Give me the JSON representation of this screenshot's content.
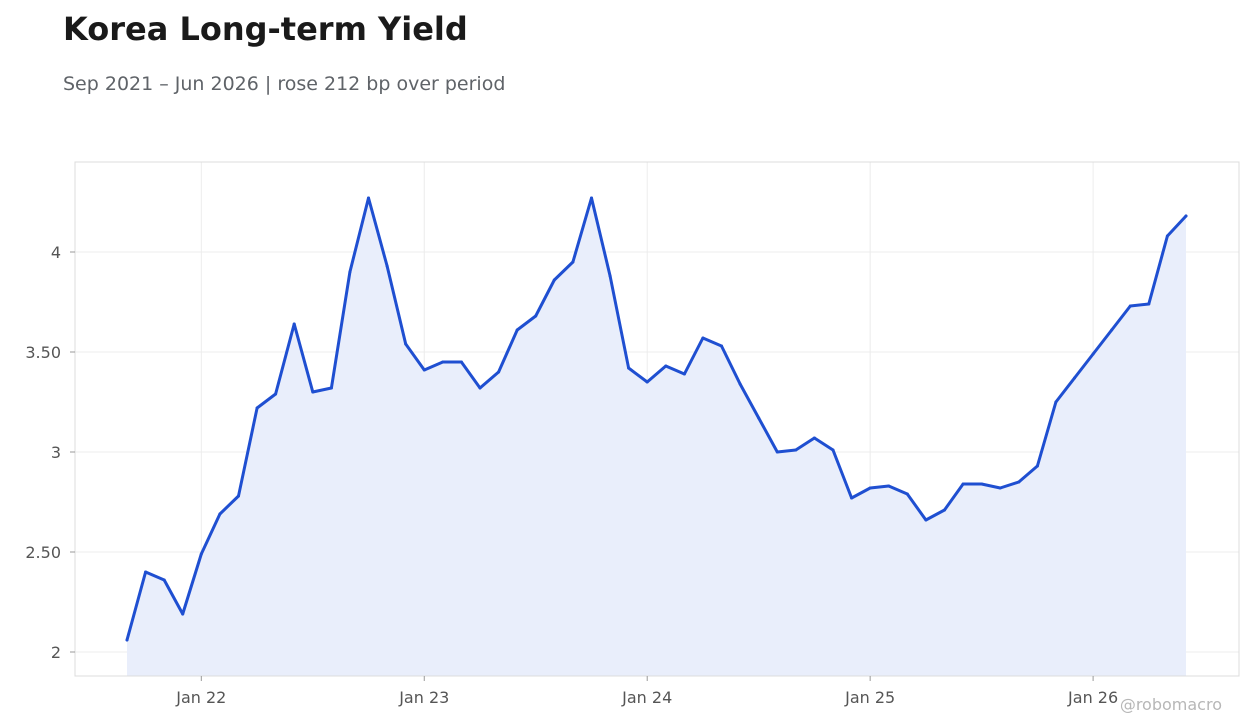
{
  "chart_data": {
    "type": "area",
    "title": "Korea Long-term Yield",
    "subtitle": "Sep 2021 – Jun 2026 | rose 212 bp over period",
    "xlabel": "",
    "ylabel": "",
    "x_start": "2021-09",
    "x_end": "2026-06",
    "xlim": [
      "2021-06",
      "2026-09"
    ],
    "ylim": [
      1.88,
      4.45
    ],
    "x_ticks": [
      {
        "date": "2022-01",
        "label": "Jan 22"
      },
      {
        "date": "2023-01",
        "label": "Jan 23"
      },
      {
        "date": "2024-01",
        "label": "Jan 24"
      },
      {
        "date": "2025-01",
        "label": "Jan 25"
      },
      {
        "date": "2026-01",
        "label": "Jan 26"
      }
    ],
    "y_ticks": [
      {
        "value": 2,
        "label": "2"
      },
      {
        "value": 2.5,
        "label": "2.50"
      },
      {
        "value": 3,
        "label": "3"
      },
      {
        "value": 3.5,
        "label": "3.50"
      },
      {
        "value": 4,
        "label": "4"
      }
    ],
    "grid": true,
    "line_color": "#1f4fd1",
    "fill_color": "#e9eefb",
    "series": [
      {
        "x": [
          "2021-09",
          "2021-10",
          "2021-11",
          "2021-12",
          "2022-01",
          "2022-02",
          "2022-03",
          "2022-04",
          "2022-05",
          "2022-06",
          "2022-07",
          "2022-08",
          "2022-09",
          "2022-10",
          "2022-11",
          "2022-12",
          "2023-01",
          "2023-02",
          "2023-03",
          "2023-04",
          "2023-05",
          "2023-06",
          "2023-07",
          "2023-08",
          "2023-09",
          "2023-10",
          "2023-11",
          "2023-12",
          "2024-01",
          "2024-02",
          "2024-03",
          "2024-04",
          "2024-05",
          "2024-06",
          "2024-07",
          "2024-08",
          "2024-09",
          "2024-10",
          "2024-11",
          "2024-12",
          "2025-01",
          "2025-02",
          "2025-03",
          "2025-04",
          "2025-05",
          "2025-06",
          "2025-07",
          "2025-08",
          "2025-09",
          "2025-10",
          "2025-11",
          "2025-12",
          "2026-01",
          "2026-02",
          "2026-03",
          "2026-04",
          "2026-05",
          "2026-06"
        ],
        "values": [
          2.06,
          2.4,
          2.36,
          2.19,
          2.49,
          2.69,
          2.78,
          3.22,
          3.29,
          3.64,
          3.3,
          3.32,
          3.9,
          4.27,
          3.93,
          3.54,
          3.41,
          3.45,
          3.45,
          3.32,
          3.4,
          3.61,
          3.68,
          3.86,
          3.95,
          4.27,
          3.88,
          3.42,
          3.35,
          3.43,
          3.39,
          3.57,
          3.53,
          3.34,
          3.17,
          3.0,
          3.01,
          3.07,
          3.01,
          2.77,
          2.82,
          2.83,
          2.79,
          2.66,
          2.71,
          2.84,
          2.84,
          2.82,
          2.85,
          2.93,
          3.25,
          3.37,
          3.49,
          3.61,
          3.73,
          3.74,
          4.08,
          4.18
        ]
      }
    ]
  },
  "watermark": "@robomacro"
}
